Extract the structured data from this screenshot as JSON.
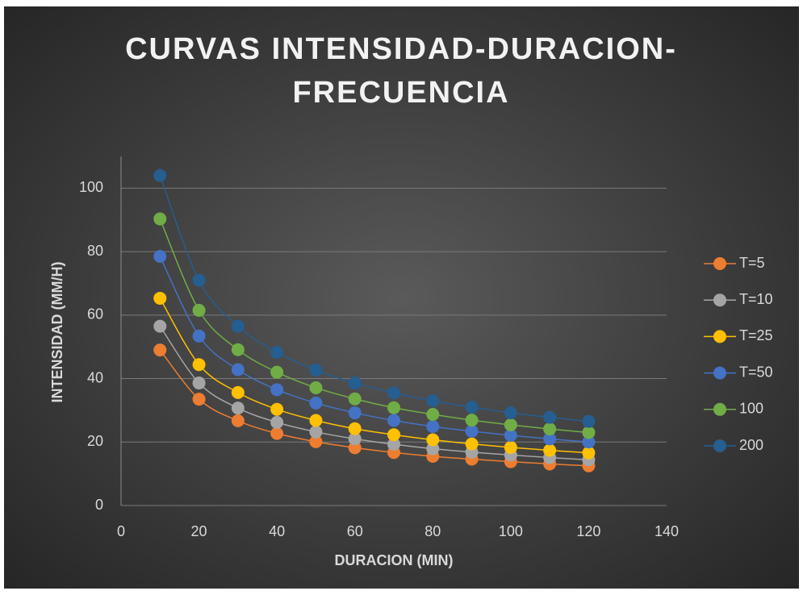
{
  "chart_data": {
    "type": "line",
    "title": "CURVAS INTENSIDAD-DURACION-FRECUENCIA",
    "x_label": "DURACION (MIN)",
    "y_label": "INTENSIDAD (MM/H)",
    "x": [
      10,
      20,
      30,
      40,
      50,
      60,
      70,
      80,
      90,
      100,
      110,
      120
    ],
    "series": [
      {
        "name": "T=5",
        "color": "#ed7d31",
        "values": [
          49,
          33.5,
          26.7,
          22.7,
          20.1,
          18.2,
          16.7,
          15.5,
          14.6,
          13.8,
          13.1,
          12.5
        ]
      },
      {
        "name": "T=10",
        "color": "#a5a5a5",
        "values": [
          56.5,
          38.6,
          30.7,
          26.2,
          23.2,
          21.0,
          19.3,
          17.9,
          16.8,
          15.9,
          15.1,
          14.4
        ]
      },
      {
        "name": "T=25",
        "color": "#ffc000",
        "values": [
          65.3,
          44.4,
          35.6,
          30.3,
          26.8,
          24.2,
          22.3,
          20.7,
          19.4,
          18.3,
          17.4,
          16.6
        ]
      },
      {
        "name": "T=50",
        "color": "#4472c4",
        "values": [
          78.5,
          53.4,
          42.8,
          36.5,
          32.3,
          29.2,
          26.8,
          24.9,
          23.4,
          22.1,
          21.0,
          20.0
        ]
      },
      {
        "name": "100",
        "color": "#70ad47",
        "values": [
          90.3,
          61.5,
          49.1,
          42.0,
          37.1,
          33.6,
          30.8,
          28.7,
          26.9,
          25.4,
          24.1,
          23.0
        ]
      },
      {
        "name": "200",
        "color": "#255e91",
        "values": [
          104,
          71,
          56.5,
          48.3,
          42.7,
          38.6,
          35.5,
          33.0,
          31.0,
          29.2,
          27.8,
          26.5
        ]
      }
    ],
    "xlim": [
      0,
      140
    ],
    "xticks": [
      0,
      20,
      40,
      60,
      80,
      100,
      120,
      140
    ],
    "ylim": [
      0,
      110
    ],
    "yticks": [
      0,
      20,
      40,
      60,
      80,
      100
    ],
    "grid": true,
    "smooth": true,
    "legend": "right"
  }
}
